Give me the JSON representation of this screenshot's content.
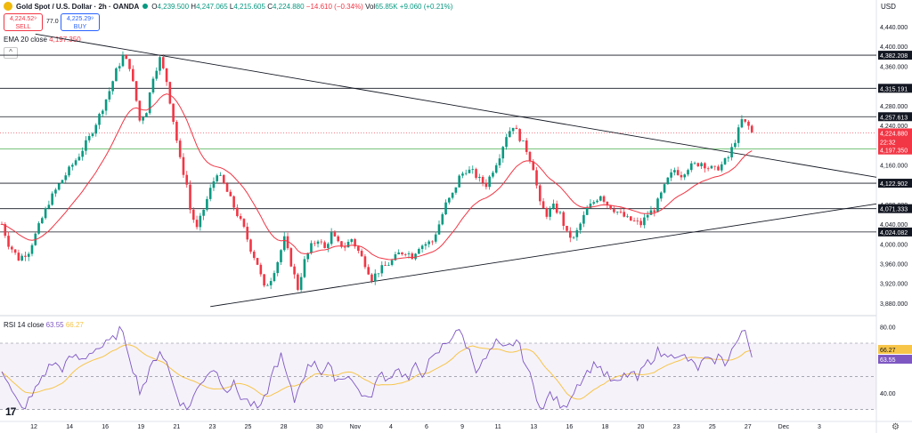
{
  "header": {
    "symbol": "Gold Spot / U.S. Dollar · 2h · OANDA",
    "open_label": "O",
    "open": "4,239.500",
    "high_label": "H",
    "high": "4,247.065",
    "low_label": "L",
    "low": "4,215.605",
    "close_label": "C",
    "close": "4,224.880",
    "change": "−14.610 (−0.34%)",
    "vol_label": "Vol",
    "vol": "65.85K",
    "vol_change": "+9.060 (+0.21%)"
  },
  "trade": {
    "sell_price": "4,224.52⁹",
    "sell_label": "SELL",
    "spread": "77.0",
    "buy_price": "4,225.29⁹",
    "buy_label": "BUY"
  },
  "indicators": {
    "ema_label": "EMA 20 close",
    "ema_value": "4,197.350",
    "rsi_label": "RSI 14 close",
    "rsi_value": "63.55",
    "rsi_ma_value": "66.27"
  },
  "currency": "USD",
  "colors": {
    "up": "#089981",
    "down": "#f23645",
    "ema": "#f23645",
    "rsi": "#7e57c2",
    "rsi_ma": "#f7c548",
    "level": "#131722",
    "ema_level": "#4caf50",
    "trendline": "#131722"
  },
  "chart_data": [
    {
      "type": "candlestick",
      "title": "Gold Spot / U.S. Dollar · 2h · OANDA",
      "ylim": [
        3860,
        4440
      ],
      "y_ticks": [
        3880,
        3920,
        3960,
        4000,
        4040,
        4080,
        4120,
        4160,
        4200,
        4240,
        4280,
        4320,
        4360,
        4400,
        4440
      ],
      "y_tick_labels": [
        "3,880.000",
        "3,920.000",
        "3,960.000",
        "4,000.000",
        "4,040.000",
        "4,080.000",
        "4,120.000",
        "4,160.000",
        "4,200.000",
        "4,240.000",
        "4,280.000",
        "4,320.000",
        "4,360.000",
        "4,400.000",
        "4,440.000"
      ],
      "x_tick_labels": [
        "12",
        "14",
        "16",
        "19",
        "21",
        "23",
        "25",
        "28",
        "30",
        "Nov",
        "4",
        "6",
        "9",
        "11",
        "13",
        "16",
        "18",
        "20",
        "23",
        "25",
        "27",
        "Dec",
        "3"
      ],
      "price_path": [
        [
          0,
          4040
        ],
        [
          2,
          4000
        ],
        [
          5,
          3970
        ],
        [
          8,
          3985
        ],
        [
          11,
          4035
        ],
        [
          14,
          4085
        ],
        [
          17,
          4120
        ],
        [
          20,
          4150
        ],
        [
          23,
          4180
        ],
        [
          26,
          4215
        ],
        [
          29,
          4260
        ],
        [
          32,
          4310
        ],
        [
          34,
          4350
        ],
        [
          36,
          4380
        ],
        [
          38,
          4360
        ],
        [
          40,
          4290
        ],
        [
          41,
          4250
        ],
        [
          43,
          4270
        ],
        [
          45,
          4340
        ],
        [
          47,
          4375
        ],
        [
          49,
          4330
        ],
        [
          51,
          4250
        ],
        [
          53,
          4170
        ],
        [
          55,
          4120
        ],
        [
          56,
          4070
        ],
        [
          58,
          4030
        ],
        [
          60,
          4070
        ],
        [
          62,
          4110
        ],
        [
          64,
          4145
        ],
        [
          66,
          4120
        ],
        [
          68,
          4090
        ],
        [
          70,
          4060
        ],
        [
          72,
          4030
        ],
        [
          74,
          3990
        ],
        [
          76,
          3960
        ],
        [
          78,
          3910
        ],
        [
          80,
          3930
        ],
        [
          82,
          3965
        ],
        [
          84,
          4010
        ],
        [
          86,
          3960
        ],
        [
          88,
          3910
        ],
        [
          90,
          3965
        ],
        [
          92,
          3995
        ],
        [
          94,
          4010
        ],
        [
          96,
          3990
        ],
        [
          98,
          4020
        ],
        [
          100,
          4000
        ],
        [
          102,
          3995
        ],
        [
          104,
          4010
        ],
        [
          106,
          3985
        ],
        [
          108,
          3960
        ],
        [
          110,
          3930
        ],
        [
          112,
          3945
        ],
        [
          114,
          3955
        ],
        [
          116,
          3965
        ],
        [
          118,
          3980
        ],
        [
          120,
          3985
        ],
        [
          122,
          3975
        ],
        [
          124,
          3995
        ],
        [
          126,
          4000
        ],
        [
          128,
          4005
        ],
        [
          130,
          4040
        ],
        [
          132,
          4080
        ],
        [
          134,
          4100
        ],
        [
          136,
          4135
        ],
        [
          138,
          4150
        ],
        [
          140,
          4145
        ],
        [
          142,
          4130
        ],
        [
          144,
          4120
        ],
        [
          146,
          4150
        ],
        [
          148,
          4180
        ],
        [
          150,
          4220
        ],
        [
          152,
          4240
        ],
        [
          154,
          4215
        ],
        [
          156,
          4190
        ],
        [
          158,
          4155
        ],
        [
          160,
          4080
        ],
        [
          162,
          4060
        ],
        [
          164,
          4075
        ],
        [
          166,
          4060
        ],
        [
          168,
          4020
        ],
        [
          170,
          4010
        ],
        [
          172,
          4040
        ],
        [
          174,
          4070
        ],
        [
          176,
          4085
        ],
        [
          178,
          4100
        ],
        [
          180,
          4080
        ],
        [
          182,
          4070
        ],
        [
          184,
          4060
        ],
        [
          186,
          4050
        ],
        [
          188,
          4045
        ],
        [
          190,
          4040
        ],
        [
          192,
          4060
        ],
        [
          194,
          4070
        ],
        [
          196,
          4100
        ],
        [
          198,
          4130
        ],
        [
          200,
          4150
        ],
        [
          202,
          4140
        ],
        [
          204,
          4155
        ],
        [
          206,
          4160
        ],
        [
          208,
          4165
        ],
        [
          210,
          4155
        ],
        [
          212,
          4150
        ],
        [
          214,
          4160
        ],
        [
          216,
          4175
        ],
        [
          218,
          4210
        ],
        [
          220,
          4250
        ],
        [
          222,
          4238
        ],
        [
          223,
          4225
        ]
      ],
      "current_price": 4224.88,
      "countdown": "22:32",
      "ema_last": 4197.35,
      "levels": [
        4382.208,
        4315.191,
        4257.613,
        4122.902,
        4071.333,
        4024.082
      ],
      "level_labels": [
        "4,382.208",
        "4,315.191",
        "4,257.613",
        "4,122.902",
        "4,071.333",
        "4,024.082"
      ],
      "ema_level": 4192.362,
      "ema_level_label": "4,192.362",
      "current_label": "4,224.880",
      "ema_label": "4,197.350",
      "trendlines": [
        {
          "name": "descending",
          "from": [
            10,
            4425
          ],
          "to": [
            260,
            4135
          ]
        },
        {
          "name": "ascending",
          "from": [
            62,
            3873
          ],
          "to": [
            260,
            4081
          ]
        }
      ]
    },
    {
      "type": "line",
      "title": "RSI 14 close",
      "ylim": [
        25,
        85
      ],
      "y_ticks": [
        40,
        60,
        80
      ],
      "y_tick_labels": [
        "40.00",
        "60.00",
        "80.00"
      ],
      "band": [
        30,
        70
      ],
      "rsi_path": [
        [
          0,
          55
        ],
        [
          3,
          40
        ],
        [
          6,
          30
        ],
        [
          9,
          38
        ],
        [
          12,
          50
        ],
        [
          15,
          58
        ],
        [
          18,
          55
        ],
        [
          21,
          62
        ],
        [
          24,
          60
        ],
        [
          27,
          66
        ],
        [
          30,
          68
        ],
        [
          33,
          72
        ],
        [
          35,
          78
        ],
        [
          37,
          70
        ],
        [
          39,
          55
        ],
        [
          41,
          42
        ],
        [
          43,
          48
        ],
        [
          45,
          58
        ],
        [
          47,
          66
        ],
        [
          49,
          58
        ],
        [
          51,
          45
        ],
        [
          53,
          35
        ],
        [
          55,
          30
        ],
        [
          57,
          38
        ],
        [
          59,
          45
        ],
        [
          61,
          52
        ],
        [
          63,
          55
        ],
        [
          65,
          48
        ],
        [
          67,
          42
        ],
        [
          69,
          45
        ],
        [
          71,
          38
        ],
        [
          73,
          35
        ],
        [
          75,
          32
        ],
        [
          77,
          30
        ],
        [
          79,
          42
        ],
        [
          81,
          55
        ],
        [
          83,
          62
        ],
        [
          85,
          48
        ],
        [
          87,
          35
        ],
        [
          89,
          48
        ],
        [
          91,
          55
        ],
        [
          93,
          60
        ],
        [
          95,
          52
        ],
        [
          97,
          56
        ],
        [
          99,
          50
        ],
        [
          101,
          48
        ],
        [
          103,
          52
        ],
        [
          105,
          44
        ],
        [
          107,
          40
        ],
        [
          109,
          35
        ],
        [
          111,
          45
        ],
        [
          113,
          52
        ],
        [
          115,
          48
        ],
        [
          117,
          55
        ],
        [
          119,
          52
        ],
        [
          121,
          48
        ],
        [
          123,
          56
        ],
        [
          125,
          52
        ],
        [
          127,
          58
        ],
        [
          129,
          62
        ],
        [
          131,
          68
        ],
        [
          133,
          72
        ],
        [
          135,
          78
        ],
        [
          137,
          74
        ],
        [
          139,
          65
        ],
        [
          141,
          55
        ],
        [
          143,
          58
        ],
        [
          145,
          64
        ],
        [
          147,
          70
        ],
        [
          149,
          66
        ],
        [
          151,
          68
        ],
        [
          153,
          72
        ],
        [
          155,
          62
        ],
        [
          157,
          50
        ],
        [
          159,
          38
        ],
        [
          161,
          30
        ],
        [
          163,
          40
        ],
        [
          165,
          35
        ],
        [
          167,
          30
        ],
        [
          169,
          38
        ],
        [
          171,
          45
        ],
        [
          173,
          50
        ],
        [
          175,
          55
        ],
        [
          177,
          58
        ],
        [
          179,
          52
        ],
        [
          181,
          48
        ],
        [
          183,
          45
        ],
        [
          185,
          50
        ],
        [
          187,
          52
        ],
        [
          189,
          48
        ],
        [
          191,
          56
        ],
        [
          193,
          60
        ],
        [
          195,
          65
        ],
        [
          197,
          62
        ],
        [
          199,
          66
        ],
        [
          201,
          60
        ],
        [
          203,
          62
        ],
        [
          205,
          58
        ],
        [
          207,
          55
        ],
        [
          209,
          60
        ],
        [
          211,
          58
        ],
        [
          213,
          62
        ],
        [
          215,
          58
        ],
        [
          217,
          66
        ],
        [
          219,
          72
        ],
        [
          221,
          78
        ],
        [
          222,
          70
        ],
        [
          223,
          64
        ]
      ],
      "rsi_last": 63.55,
      "ma_last": 66.27,
      "ma_label": "66.27",
      "rsi_label": "63.55"
    }
  ]
}
